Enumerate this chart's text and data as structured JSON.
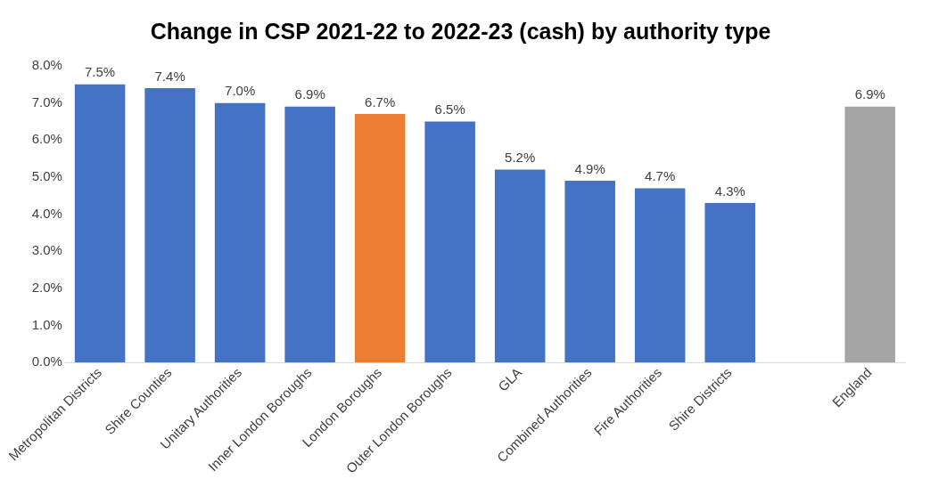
{
  "chart_data": {
    "type": "bar",
    "title": "Change in CSP 2021-22 to 2022-23 (cash) by authority type",
    "categories": [
      "Metropolitan Districts",
      "Shire Counties",
      "Unitary Authorities",
      "Inner London Boroughs",
      "London Boroughs",
      "Outer London Boroughs",
      "GLA",
      "Combined Authorities",
      "Fire Authorities",
      "Shire Districts",
      null,
      "England"
    ],
    "values": [
      7.5,
      7.4,
      7.0,
      6.9,
      6.7,
      6.5,
      5.2,
      4.9,
      4.7,
      4.3,
      null,
      6.9
    ],
    "colors": [
      "#4472c4",
      "#4472c4",
      "#4472c4",
      "#4472c4",
      "#ed7d31",
      "#4472c4",
      "#4472c4",
      "#4472c4",
      "#4472c4",
      "#4472c4",
      "#4472c4",
      "#a5a5a5"
    ],
    "value_labels": [
      "7.5%",
      "7.4%",
      "7.0%",
      "6.9%",
      "6.7%",
      "6.5%",
      "5.2%",
      "4.9%",
      "4.7%",
      "4.3%",
      null,
      "6.9%"
    ],
    "ylim": [
      0,
      8
    ],
    "yticks": [
      {
        "value": 0,
        "label": "0.0%"
      },
      {
        "value": 1,
        "label": "1.0%"
      },
      {
        "value": 2,
        "label": "2.0%"
      },
      {
        "value": 3,
        "label": "3.0%"
      },
      {
        "value": 4,
        "label": "4.0%"
      },
      {
        "value": 5,
        "label": "5.0%"
      },
      {
        "value": 6,
        "label": "6.0%"
      },
      {
        "value": 7,
        "label": "7.0%"
      },
      {
        "value": 8,
        "label": "8.0%"
      }
    ],
    "grid": false,
    "legend": false
  }
}
